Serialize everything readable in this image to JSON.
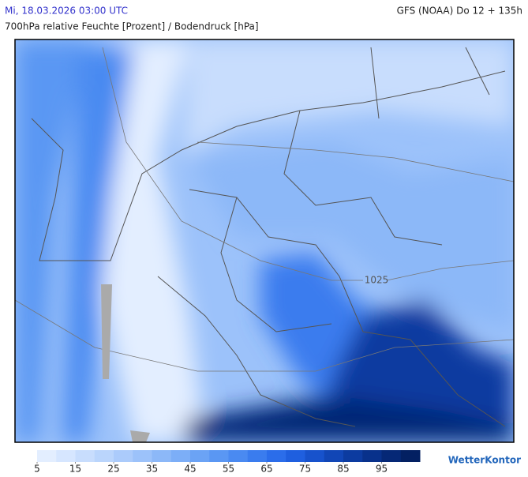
{
  "header": {
    "datetime": "Mi, 18.03.2026 03:00 UTC",
    "model": "GFS (NOAA) Do 12 + 135h",
    "subtitle": "700hPa relative Feuchte [Prozent] / Bodendruck [hPa]"
  },
  "map": {
    "isobar_label": "1025"
  },
  "colorbar": {
    "lim": [
      5,
      105
    ],
    "ticks": [
      5,
      15,
      25,
      35,
      45,
      55,
      65,
      75,
      85,
      95
    ],
    "colors": [
      "#e3eeff",
      "#d6e6ff",
      "#c8ddfd",
      "#bad5fc",
      "#abcbfb",
      "#9cc2fa",
      "#8cb8f8",
      "#7caef7",
      "#6ba3f5",
      "#5a97f3",
      "#4a8af1",
      "#3a7cee",
      "#2b6dea",
      "#1f5fdf",
      "#1752cc",
      "#1146b6",
      "#0c3ba0",
      "#08318b",
      "#052876",
      "#032062"
    ]
  },
  "brand": "WetterKontor"
}
